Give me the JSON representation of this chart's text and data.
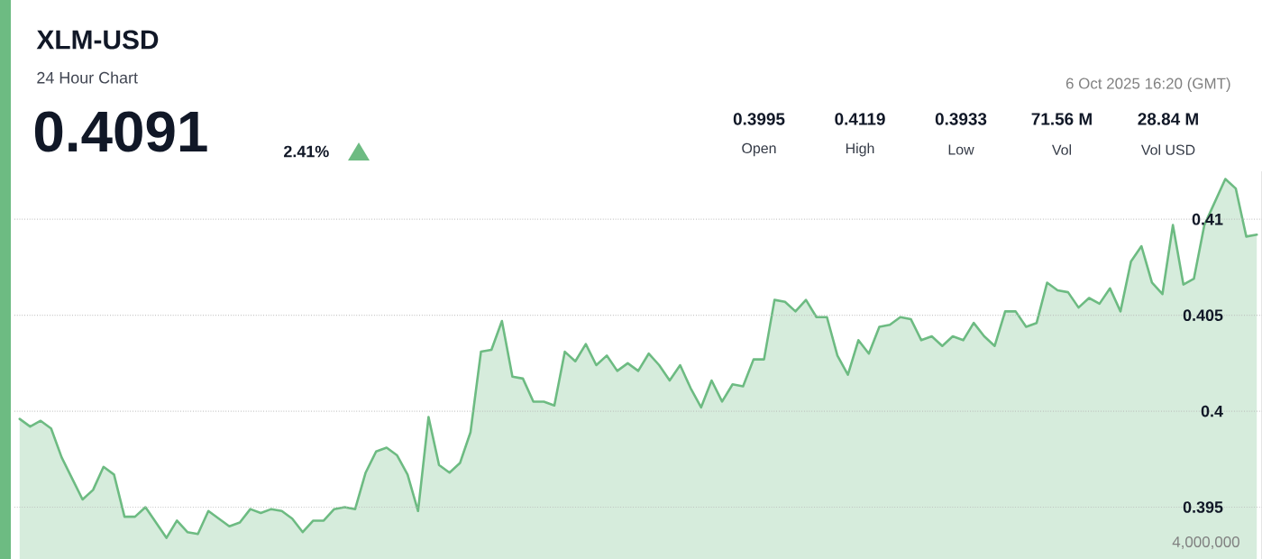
{
  "chart_data": {
    "type": "area",
    "title": "XLM-USD",
    "subtitle": "24 Hour Chart",
    "annotations": [
      "0.4091",
      "2.41%",
      "0.3995",
      "Open",
      "0.4119",
      "High",
      "0.3933",
      "Low",
      "71.56 M",
      "Vol",
      "28.84 M",
      "Vol USD",
      "6 Oct 2025 16:20 (GMT)",
      "4,000,000"
    ],
    "categories": [
      null,
      null,
      null,
      null,
      null,
      null,
      null,
      null,
      null,
      null,
      null,
      null,
      null,
      null,
      null,
      null,
      null,
      null,
      null,
      null,
      null,
      null,
      null,
      null,
      null,
      null,
      null,
      null,
      null,
      null,
      null,
      null,
      null,
      null,
      null,
      null,
      null,
      null,
      null,
      null,
      null,
      null,
      null,
      null,
      null,
      null,
      null,
      null,
      null,
      null,
      null,
      null,
      null,
      null,
      null,
      null,
      null,
      null,
      null,
      null,
      null,
      null,
      null,
      null,
      null,
      null,
      null,
      null,
      null,
      null,
      null,
      null,
      null,
      null,
      null,
      null,
      null,
      null,
      null,
      null,
      null,
      null,
      null,
      null,
      null,
      null,
      null,
      null,
      null,
      null,
      null,
      null,
      null,
      null,
      null,
      null,
      null,
      null,
      null,
      null,
      null,
      null,
      null,
      null,
      null,
      null,
      null,
      null,
      null,
      null,
      null,
      null,
      null,
      null,
      null,
      null,
      null,
      null,
      null
    ],
    "values": [
      0.3996,
      0.3992,
      0.3995,
      0.3991,
      0.3976,
      0.3965,
      0.3954,
      0.3959,
      0.3971,
      0.3967,
      0.3945,
      0.3945,
      0.395,
      0.3942,
      0.3934,
      0.3943,
      0.3937,
      0.3936,
      0.3948,
      0.3944,
      0.394,
      0.3942,
      0.3949,
      0.3947,
      0.3949,
      0.3948,
      0.3944,
      0.3937,
      0.3943,
      0.3943,
      0.3949,
      0.395,
      0.3949,
      0.3968,
      0.3979,
      0.3981,
      0.3977,
      0.3967,
      0.3948,
      0.3997,
      0.3972,
      0.3968,
      0.3973,
      0.3989,
      0.4031,
      0.4032,
      0.4047,
      0.4018,
      0.4017,
      0.4005,
      0.4005,
      0.4003,
      0.4031,
      0.4026,
      0.4035,
      0.4024,
      0.4029,
      0.4021,
      0.4025,
      0.4021,
      0.403,
      0.4024,
      0.4016,
      0.4024,
      0.4012,
      0.4002,
      0.4016,
      0.4005,
      0.4014,
      0.4013,
      0.4027,
      0.4027,
      0.4058,
      0.4057,
      0.4052,
      0.4058,
      0.4049,
      0.4049,
      0.4029,
      0.4019,
      0.4037,
      0.403,
      0.4044,
      0.4045,
      0.4049,
      0.4048,
      0.4037,
      0.4039,
      0.4034,
      0.4039,
      0.4037,
      0.4046,
      0.4039,
      0.4034,
      0.4052,
      0.4052,
      0.4044,
      0.4046,
      0.4067,
      0.4063,
      0.4062,
      0.4054,
      0.4059,
      0.4056,
      0.4064,
      0.4052,
      0.4078,
      0.4086,
      0.4067,
      0.4061,
      0.4097,
      0.4066,
      0.4069,
      0.4097,
      0.4109,
      0.4121,
      0.4116,
      0.4091,
      0.4092
    ],
    "color": "#6dbb82",
    "ylim": [
      0.3923,
      0.4125
    ],
    "yticks": [
      0.395,
      0.4,
      0.405,
      0.41
    ],
    "grid": "y",
    "tick_labels": "y"
  }
}
